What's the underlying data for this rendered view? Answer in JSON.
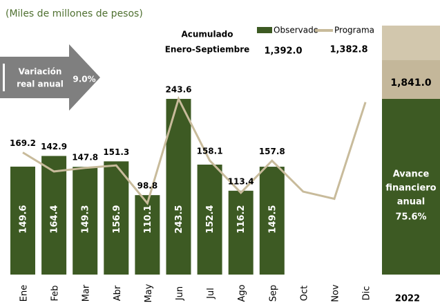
{
  "chart_data": {
    "type": "bar_line",
    "subtitle": "(Miles de millones de pesos)",
    "accumulated_title": [
      "Acumulado",
      "Enero-Septiembre"
    ],
    "categories": [
      "Ene",
      "Feb",
      "Mar",
      "Abr",
      "May",
      "Jun",
      "Jul",
      "Ago",
      "Sep",
      "Oct",
      "Nov",
      "Dic"
    ],
    "series": [
      {
        "name": "Observado",
        "color": "#3d5a23",
        "values": [
          149.6,
          164.4,
          149.3,
          156.9,
          110.1,
          243.5,
          152.4,
          116.2,
          149.5,
          null,
          null,
          null
        ],
        "total": "1,392.0"
      },
      {
        "name": "Programa",
        "color": "#c8bb9b",
        "values": [
          169.2,
          142.9,
          147.8,
          151.3,
          98.8,
          243.6,
          158.1,
          113.4,
          157.8,
          115,
          105,
          239
        ],
        "total": "1,382.8"
      }
    ],
    "ylim": [
      0,
      370
    ],
    "variation": {
      "label": [
        "Variación",
        "real anual"
      ],
      "value": "9.0%"
    },
    "annual": {
      "year": "2022",
      "total": "1,841.0",
      "avance_label": [
        "Avance",
        "financiero",
        "anual"
      ],
      "avance": "75.6%"
    }
  }
}
